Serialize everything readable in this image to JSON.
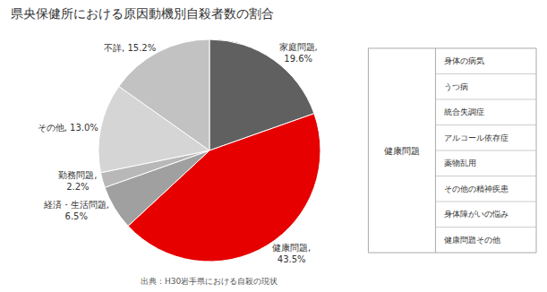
{
  "chart_data": {
    "type": "pie",
    "title": "県央保健所における原因動機別自殺者数の割合",
    "categories": [
      "家庭問題,\n19.6%",
      "健康問題,\n43.5%",
      "経済・生活問題,\n6.5%",
      "勤務問題,\n2.2%",
      "その他, 13.0%",
      "不詳, 15.2%"
    ],
    "values": [
      19.6,
      43.5,
      6.5,
      2.2,
      13.0,
      15.2
    ],
    "colors": [
      "#606060",
      "#e60000",
      "#a0a0a0",
      "#b8b8b8",
      "#d5d5d5",
      "#c2c2c2"
    ],
    "annotations": [
      "出典：H30岩手県における自殺の現状"
    ],
    "legend_table": {
      "title": "健康問題",
      "items": [
        "身体の病気",
        "うつ病",
        "統合失調症",
        "アルコール依存症",
        "薬物乱用",
        "その他の精神疾患",
        "身体障がいの悩み",
        "健康問題その他"
      ]
    }
  }
}
